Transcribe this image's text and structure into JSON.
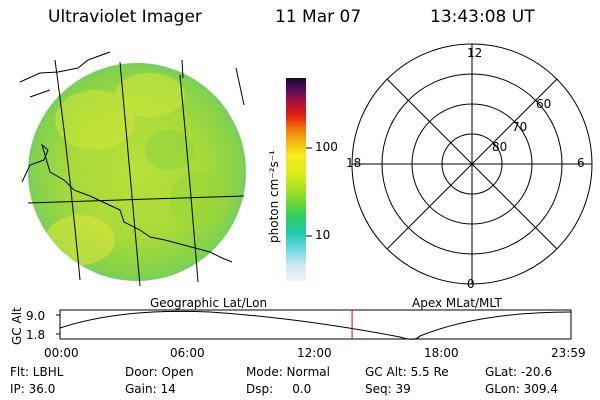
{
  "header": {
    "title": "Ultraviolet Imager",
    "date": "11 Mar 07",
    "time": "13:43:08 UT"
  },
  "colorbar": {
    "unit_label": "photon cm⁻²s⁻¹",
    "tick_labels": [
      "100",
      "10"
    ]
  },
  "polar_plot": {
    "mlt_labels": [
      "12",
      "18",
      "6",
      "0"
    ],
    "mlat_labels": [
      "60",
      "70",
      "80"
    ]
  },
  "timeline": {
    "left_label": "Geographic Lat/Lon",
    "right_label": "Apex MLat/MLT",
    "y_axis_label": "GC Alt",
    "y_ticks": [
      "9.0",
      "1.8"
    ],
    "x_ticks": [
      "00:00",
      "06:00",
      "12:00",
      "18:00",
      "23:59"
    ],
    "current_time_fraction": 0.5716
  },
  "info": {
    "filter": "Flt: LBHL",
    "ip": "IP: 36.0",
    "door": "Door: Open",
    "gain": "Gain: 14",
    "mode": "Mode: Normal",
    "dsp": "Dsp:     0.0",
    "gc_alt": "GC Alt: 5.5 Re",
    "seq": "Seq: 39",
    "glat": "GLat: -20.6",
    "glon": "GLon: 309.4"
  }
}
